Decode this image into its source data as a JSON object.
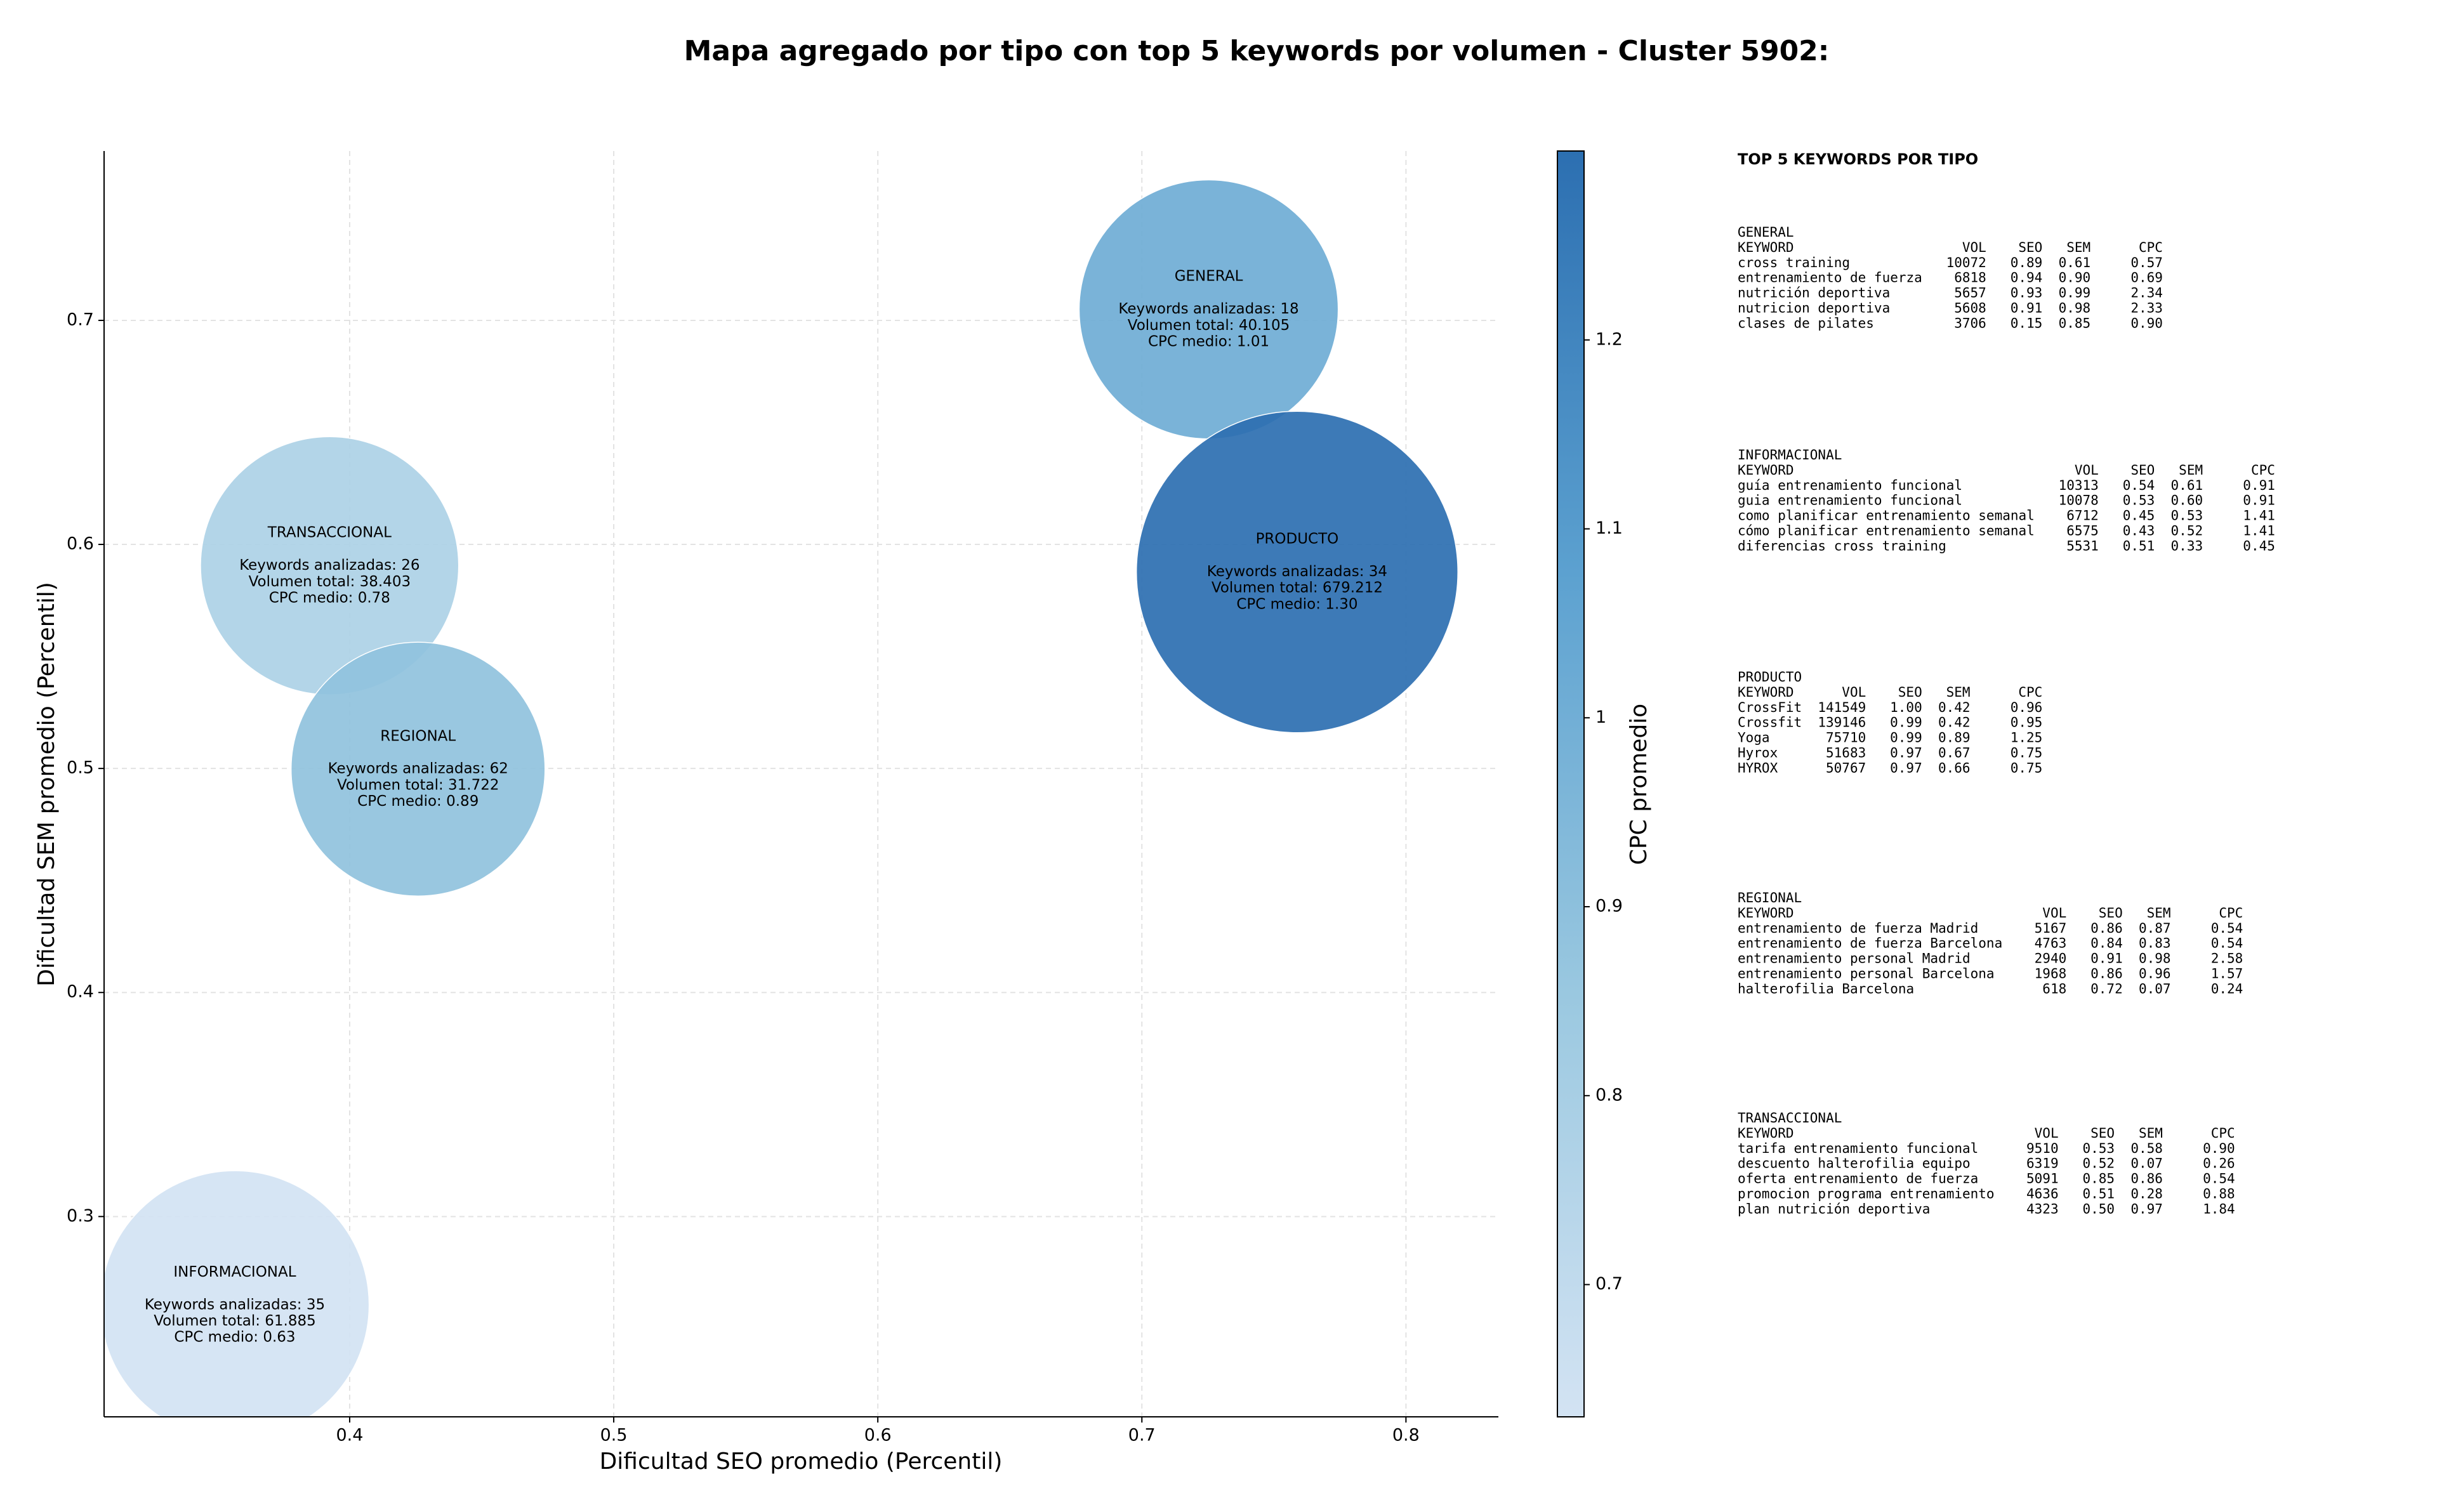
{
  "chart_data": {
    "type": "bubble",
    "title": "Mapa agregado por tipo con top 5 keywords por volumen - Cluster 5902:",
    "xlabel": "Dificultad SEO promedio (Percentil)",
    "ylabel": "Dificultad SEM promedio (Percentil)",
    "colorbar_label": "CPC promedio",
    "xlim": [
      0.307,
      0.835
    ],
    "ylim": [
      0.2106,
      0.7756
    ],
    "xticks": [
      0.4,
      0.5,
      0.6,
      0.7,
      0.8
    ],
    "yticks": [
      0.3,
      0.4,
      0.5,
      0.6,
      0.7
    ],
    "clim": [
      0.63,
      1.3
    ],
    "cticks": [
      0.7,
      0.8,
      0.9,
      1.0,
      1.1,
      1.2
    ],
    "colormap": [
      "#d3e3f3",
      "#9ac8e0",
      "#5ca1d0",
      "#2c6fb1"
    ],
    "grid": true,
    "points": [
      {
        "name": "GENERAL",
        "x": 0.7253,
        "y": 0.7049,
        "size": 40105,
        "color_value": 1.01,
        "annotation": [
          "Keywords analizadas: 18",
          "Volumen total: 40.105",
          "CPC medio: 1.01"
        ]
      },
      {
        "name": "INFORMACIONAL",
        "x": 0.3565,
        "y": 0.2605,
        "size": 61885,
        "color_value": 0.63,
        "annotation": [
          "Keywords analizadas: 35",
          "Volumen total: 61.885",
          "CPC medio: 0.63"
        ]
      },
      {
        "name": "PRODUCTO",
        "x": 0.7588,
        "y": 0.5877,
        "size": 679212,
        "color_value": 1.3,
        "annotation": [
          "Keywords analizadas: 34",
          "Volumen total: 679.212",
          "CPC medio: 1.30"
        ]
      },
      {
        "name": "TRANSACCIONAL",
        "x": 0.3924,
        "y": 0.5905,
        "size": 38403,
        "color_value": 0.78,
        "annotation": [
          "Keywords analizadas: 26",
          "Volumen total: 38.403",
          "CPC medio: 0.78"
        ]
      },
      {
        "name": "REGIONAL",
        "x": 0.4259,
        "y": 0.4997,
        "size": 31722,
        "color_value": 0.89,
        "annotation": [
          "Keywords analizadas: 62",
          "Volumen total: 31.722",
          "CPC medio: 0.89"
        ]
      }
    ]
  },
  "side_panel": {
    "title": "TOP 5 KEYWORDS POR TIPO",
    "columns": [
      "KEYWORD",
      "VOL",
      "SEO",
      "SEM",
      "CPC"
    ],
    "sections": [
      {
        "title": "GENERAL",
        "rows": [
          [
            "cross training",
            "10072",
            "0.89",
            "0.61",
            "0.57"
          ],
          [
            "entrenamiento de fuerza",
            "6818",
            "0.94",
            "0.90",
            "0.69"
          ],
          [
            "nutrición deportiva",
            "5657",
            "0.93",
            "0.99",
            "2.34"
          ],
          [
            "nutricion deportiva",
            "5608",
            "0.91",
            "0.98",
            "2.33"
          ],
          [
            "clases de pilates",
            "3706",
            "0.15",
            "0.85",
            "0.90"
          ]
        ]
      },
      {
        "title": "INFORMACIONAL",
        "rows": [
          [
            "guía entrenamiento funcional",
            "10313",
            "0.54",
            "0.61",
            "0.91"
          ],
          [
            "guia entrenamiento funcional",
            "10078",
            "0.53",
            "0.60",
            "0.91"
          ],
          [
            "como planificar entrenamiento semanal",
            "6712",
            "0.45",
            "0.53",
            "1.41"
          ],
          [
            "cómo planificar entrenamiento semanal",
            "6575",
            "0.43",
            "0.52",
            "1.41"
          ],
          [
            "diferencias cross training",
            "5531",
            "0.51",
            "0.33",
            "0.45"
          ]
        ]
      },
      {
        "title": "PRODUCTO",
        "rows": [
          [
            "CrossFit",
            "141549",
            "1.00",
            "0.42",
            "0.96"
          ],
          [
            "Crossfit",
            "139146",
            "0.99",
            "0.42",
            "0.95"
          ],
          [
            "Yoga",
            "75710",
            "0.99",
            "0.89",
            "1.25"
          ],
          [
            "Hyrox",
            "51683",
            "0.97",
            "0.67",
            "0.75"
          ],
          [
            "HYROX",
            "50767",
            "0.97",
            "0.66",
            "0.75"
          ]
        ]
      },
      {
        "title": "REGIONAL",
        "rows": [
          [
            "entrenamiento de fuerza Madrid",
            "5167",
            "0.86",
            "0.87",
            "0.54"
          ],
          [
            "entrenamiento de fuerza Barcelona",
            "4763",
            "0.84",
            "0.83",
            "0.54"
          ],
          [
            "entrenamiento personal Madrid",
            "2940",
            "0.91",
            "0.98",
            "2.58"
          ],
          [
            "entrenamiento personal Barcelona",
            "1968",
            "0.86",
            "0.96",
            "1.57"
          ],
          [
            "halterofilia Barcelona",
            "618",
            "0.72",
            "0.07",
            "0.24"
          ]
        ]
      },
      {
        "title": "TRANSACCIONAL",
        "rows": [
          [
            "tarifa entrenamiento funcional",
            "9510",
            "0.53",
            "0.58",
            "0.90"
          ],
          [
            "descuento halterofilia equipo",
            "6319",
            "0.52",
            "0.07",
            "0.26"
          ],
          [
            "oferta entrenamiento de fuerza",
            "5091",
            "0.85",
            "0.86",
            "0.54"
          ],
          [
            "promocion programa entrenamiento",
            "4636",
            "0.51",
            "0.28",
            "0.88"
          ],
          [
            "plan nutrición deportiva",
            "4323",
            "0.50",
            "0.97",
            "1.84"
          ]
        ]
      }
    ]
  }
}
